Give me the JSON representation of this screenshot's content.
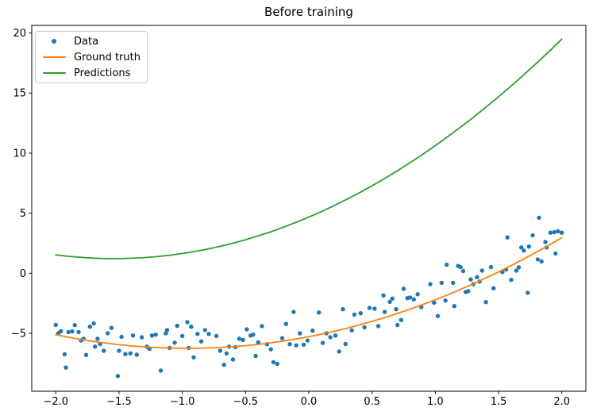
{
  "figure": {
    "title": "Before training"
  },
  "colors": {
    "data_points": "#1f77b4",
    "ground_truth": "#ff7f0e",
    "predictions": "#2ca02c",
    "axis": "#000000",
    "tick_text": "#000000",
    "legend_border": "#cccccc",
    "background": "#ffffff"
  },
  "chart_data": {
    "type": "scatter",
    "title": "Before training",
    "xlabel": "",
    "ylabel": "",
    "grid": false,
    "legend_position": "upper left",
    "xlim": [
      -2.19,
      2.19
    ],
    "ylim": [
      -9.82,
      20.63
    ],
    "x_ticks": [
      {
        "v": -2.0,
        "label": "−2.0"
      },
      {
        "v": -1.5,
        "label": "−1.5"
      },
      {
        "v": -1.0,
        "label": "−1.0"
      },
      {
        "v": -0.5,
        "label": "−0.5"
      },
      {
        "v": 0.0,
        "label": "0.0"
      },
      {
        "v": 0.5,
        "label": "0.5"
      },
      {
        "v": 1.0,
        "label": "1.0"
      },
      {
        "v": 1.5,
        "label": "1.5"
      },
      {
        "v": 2.0,
        "label": "2.0"
      }
    ],
    "y_ticks": [
      {
        "v": 20,
        "label": "20"
      },
      {
        "v": 15,
        "label": "15"
      },
      {
        "v": 10,
        "label": "10"
      },
      {
        "v": 5,
        "label": "5"
      },
      {
        "v": 0,
        "label": "0"
      },
      {
        "v": -5,
        "label": "−5"
      }
    ],
    "legend": [
      {
        "label": "Data",
        "marker": "dot",
        "color": "#1f77b4"
      },
      {
        "label": "Ground truth",
        "marker": "line",
        "color": "#ff7f0e"
      },
      {
        "label": "Predictions",
        "marker": "line",
        "color": "#2ca02c"
      }
    ],
    "series": [
      {
        "name": "Data",
        "type": "scatter",
        "color": "#1f77b4",
        "marker_radius": 2.7,
        "points": [
          [
            -2.0,
            -4.3
          ],
          [
            -1.98,
            -5.0
          ],
          [
            -1.96,
            -4.82
          ],
          [
            -1.93,
            -6.75
          ],
          [
            -1.92,
            -7.85
          ],
          [
            -1.9,
            -4.9
          ],
          [
            -1.87,
            -4.84
          ],
          [
            -1.85,
            -4.32
          ],
          [
            -1.82,
            -4.9
          ],
          [
            -1.8,
            -5.6
          ],
          [
            -1.78,
            -5.45
          ],
          [
            -1.76,
            -6.8
          ],
          [
            -1.73,
            -4.45
          ],
          [
            -1.7,
            -4.18
          ],
          [
            -1.69,
            -6.11
          ],
          [
            -1.67,
            -5.45
          ],
          [
            -1.65,
            -5.89
          ],
          [
            -1.62,
            -6.45
          ],
          [
            -1.59,
            -5.0
          ],
          [
            -1.56,
            -4.55
          ],
          [
            -1.51,
            -8.55
          ],
          [
            -1.5,
            -6.45
          ],
          [
            -1.48,
            -5.29
          ],
          [
            -1.45,
            -6.73
          ],
          [
            -1.41,
            -6.67
          ],
          [
            -1.39,
            -5.18
          ],
          [
            -1.36,
            -6.78
          ],
          [
            -1.32,
            -5.33
          ],
          [
            -1.28,
            -6.11
          ],
          [
            -1.26,
            -6.29
          ],
          [
            -1.24,
            -5.18
          ],
          [
            -1.21,
            -5.11
          ],
          [
            -1.17,
            -8.1
          ],
          [
            -1.13,
            -5.0
          ],
          [
            -1.12,
            -4.73
          ],
          [
            -1.1,
            -6.22
          ],
          [
            -1.06,
            -5.78
          ],
          [
            -1.04,
            -4.38
          ],
          [
            -1.0,
            -5.22
          ],
          [
            -0.96,
            -4.07
          ],
          [
            -0.95,
            -6.22
          ],
          [
            -0.93,
            -4.45
          ],
          [
            -0.91,
            -7.0
          ],
          [
            -0.88,
            -5.05
          ],
          [
            -0.85,
            -5.67
          ],
          [
            -0.82,
            -4.73
          ],
          [
            -0.79,
            -5.05
          ],
          [
            -0.73,
            -5.22
          ],
          [
            -0.7,
            -6.45
          ],
          [
            -0.67,
            -7.62
          ],
          [
            -0.65,
            -6.67
          ],
          [
            -0.63,
            -6.11
          ],
          [
            -0.6,
            -7.18
          ],
          [
            -0.58,
            -6.15
          ],
          [
            -0.55,
            -5.45
          ],
          [
            -0.52,
            -5.55
          ],
          [
            -0.49,
            -4.67
          ],
          [
            -0.46,
            -5.18
          ],
          [
            -0.44,
            -5.11
          ],
          [
            -0.42,
            -6.89
          ],
          [
            -0.4,
            -5.75
          ],
          [
            -0.37,
            -4.4
          ],
          [
            -0.33,
            -5.9
          ],
          [
            -0.3,
            -6.33
          ],
          [
            -0.28,
            -7.4
          ],
          [
            -0.25,
            -7.55
          ],
          [
            -0.21,
            -5.4
          ],
          [
            -0.18,
            -4.22
          ],
          [
            -0.15,
            -5.9
          ],
          [
            -0.12,
            -3.22
          ],
          [
            -0.1,
            -6.0
          ],
          [
            -0.07,
            -5.0
          ],
          [
            -0.04,
            -5.95
          ],
          [
            -0.01,
            -5.6
          ],
          [
            0.03,
            -4.78
          ],
          [
            0.08,
            -3.27
          ],
          [
            0.11,
            -5.8
          ],
          [
            0.14,
            -5.0
          ],
          [
            0.17,
            -5.33
          ],
          [
            0.21,
            -5.18
          ],
          [
            0.24,
            -6.51
          ],
          [
            0.27,
            -3.0
          ],
          [
            0.29,
            -5.89
          ],
          [
            0.34,
            -4.75
          ],
          [
            0.36,
            -3.44
          ],
          [
            0.41,
            -3.33
          ],
          [
            0.44,
            -4.5
          ],
          [
            0.48,
            -2.89
          ],
          [
            0.52,
            -2.95
          ],
          [
            0.55,
            -4.4
          ],
          [
            0.59,
            -1.85
          ],
          [
            0.6,
            -3.22
          ],
          [
            0.64,
            -2.38
          ],
          [
            0.66,
            -2.11
          ],
          [
            0.69,
            -3.0
          ],
          [
            0.7,
            -4.31
          ],
          [
            0.73,
            -3.89
          ],
          [
            0.75,
            -1.29
          ],
          [
            0.78,
            -2.07
          ],
          [
            0.8,
            -2.02
          ],
          [
            0.83,
            -2.18
          ],
          [
            0.86,
            -1.75
          ],
          [
            0.89,
            -2.82
          ],
          [
            0.96,
            -0.91
          ],
          [
            0.99,
            -2.45
          ],
          [
            1.02,
            -3.56
          ],
          [
            1.05,
            -0.8
          ],
          [
            1.08,
            -2.27
          ],
          [
            1.09,
            0.71
          ],
          [
            1.14,
            -0.8
          ],
          [
            1.15,
            -2.73
          ],
          [
            1.18,
            0.6
          ],
          [
            1.2,
            0.51
          ],
          [
            1.22,
            0.18
          ],
          [
            1.24,
            -1.56
          ],
          [
            1.26,
            -1.49
          ],
          [
            1.28,
            -0.51
          ],
          [
            1.3,
            -0.91
          ],
          [
            1.33,
            -0.33
          ],
          [
            1.35,
            -0.69
          ],
          [
            1.37,
            0.22
          ],
          [
            1.4,
            -2.4
          ],
          [
            1.44,
            0.51
          ],
          [
            1.46,
            -1.25
          ],
          [
            1.53,
            0.11
          ],
          [
            1.56,
            0.31
          ],
          [
            1.57,
            2.98
          ],
          [
            1.6,
            -0.55
          ],
          [
            1.64,
            0.22
          ],
          [
            1.66,
            0.5
          ],
          [
            1.68,
            2.15
          ],
          [
            1.7,
            1.89
          ],
          [
            1.73,
            -1.62
          ],
          [
            1.74,
            2.22
          ],
          [
            1.77,
            3.15
          ],
          [
            1.81,
            1.15
          ],
          [
            1.82,
            4.62
          ],
          [
            1.84,
            0.98
          ],
          [
            1.87,
            2.6
          ],
          [
            1.88,
            2.15
          ],
          [
            1.91,
            3.38
          ],
          [
            1.94,
            3.42
          ],
          [
            1.95,
            1.64
          ],
          [
            1.97,
            3.49
          ],
          [
            2.0,
            3.38
          ]
        ]
      },
      {
        "name": "Ground truth",
        "type": "line",
        "color": "#ff7f0e",
        "line_width": 1.8,
        "x": [
          -2.0,
          -1.9,
          -1.8,
          -1.7,
          -1.6,
          -1.5,
          -1.4,
          -1.3,
          -1.2,
          -1.1,
          -1.0,
          -0.9,
          -0.8,
          -0.7,
          -0.6,
          -0.5,
          -0.4,
          -0.3,
          -0.2,
          -0.1,
          0.0,
          0.1,
          0.2,
          0.3,
          0.4,
          0.5,
          0.6,
          0.7,
          0.8,
          0.9,
          1.0,
          1.1,
          1.2,
          1.3,
          1.4,
          1.5,
          1.6,
          1.7,
          1.8,
          1.9,
          2.0
        ],
        "y": [
          -5.12,
          -5.33,
          -5.51,
          -5.68,
          -5.82,
          -5.95,
          -6.05,
          -6.13,
          -6.19,
          -6.23,
          -6.25,
          -6.25,
          -6.22,
          -6.18,
          -6.11,
          -6.03,
          -5.92,
          -5.79,
          -5.64,
          -5.47,
          -5.28,
          -5.07,
          -4.83,
          -4.58,
          -4.3,
          -4.01,
          -3.69,
          -3.35,
          -2.99,
          -2.61,
          -2.21,
          -1.79,
          -1.34,
          -0.88,
          -0.39,
          0.11,
          0.64,
          1.19,
          1.76,
          2.35,
          2.96
        ]
      },
      {
        "name": "Predictions",
        "type": "line",
        "color": "#2ca02c",
        "line_width": 1.8,
        "x": [
          -2.0,
          -1.9,
          -1.8,
          -1.7,
          -1.6,
          -1.5,
          -1.4,
          -1.3,
          -1.2,
          -1.1,
          -1.0,
          -0.9,
          -0.8,
          -0.7,
          -0.6,
          -0.5,
          -0.4,
          -0.3,
          -0.2,
          -0.1,
          0.0,
          0.1,
          0.2,
          0.3,
          0.4,
          0.5,
          0.6,
          0.7,
          0.8,
          0.9,
          1.0,
          1.1,
          1.2,
          1.3,
          1.4,
          1.5,
          1.6,
          1.7,
          1.8,
          1.9,
          2.0
        ],
        "y": [
          1.53,
          1.41,
          1.32,
          1.26,
          1.22,
          1.22,
          1.25,
          1.3,
          1.38,
          1.5,
          1.64,
          1.81,
          2.01,
          2.24,
          2.5,
          2.79,
          3.11,
          3.45,
          3.83,
          4.24,
          4.67,
          5.13,
          5.63,
          6.15,
          6.7,
          7.28,
          7.89,
          8.53,
          9.2,
          9.89,
          10.62,
          11.38,
          12.16,
          12.97,
          13.82,
          14.69,
          15.59,
          16.52,
          17.48,
          18.47,
          19.49
        ]
      }
    ]
  }
}
